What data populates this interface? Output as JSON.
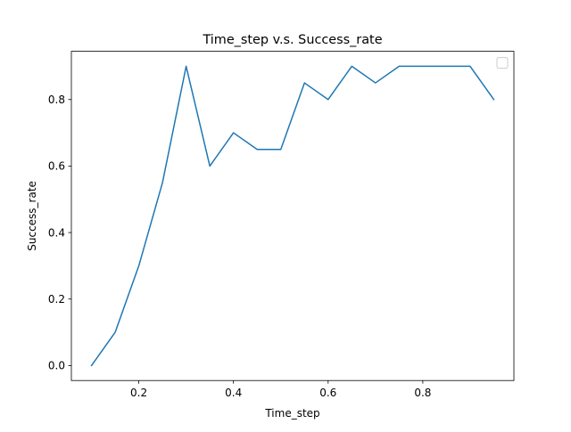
{
  "chart_data": {
    "type": "line",
    "title": "Time_step v.s. Success_rate",
    "xlabel": "Time_step",
    "ylabel": "Success_rate",
    "x": [
      0.1,
      0.15,
      0.2,
      0.25,
      0.3,
      0.35,
      0.4,
      0.45,
      0.5,
      0.55,
      0.6,
      0.65,
      0.7,
      0.75,
      0.8,
      0.85,
      0.9,
      0.95
    ],
    "series": [
      {
        "values": [
          0.0,
          0.1,
          0.3,
          0.55,
          0.9,
          0.6,
          0.7,
          0.65,
          0.65,
          0.85,
          0.8,
          0.9,
          0.85,
          0.9,
          0.9,
          0.9,
          0.9,
          0.8
        ],
        "color": "#1f77b4"
      }
    ],
    "xlim": [
      0.0575,
      0.9925
    ],
    "ylim": [
      -0.045,
      0.945
    ],
    "xticks": [
      0.2,
      0.4,
      0.6,
      0.8
    ],
    "xtick_labels": [
      "0.2",
      "0.4",
      "0.6",
      "0.8"
    ],
    "yticks": [
      0.0,
      0.2,
      0.4,
      0.6,
      0.8
    ],
    "ytick_labels": [
      "0.0",
      "0.2",
      "0.4",
      "0.6",
      "0.8"
    ],
    "grid": false,
    "legend": {
      "placement": "top-right",
      "entries": []
    }
  }
}
